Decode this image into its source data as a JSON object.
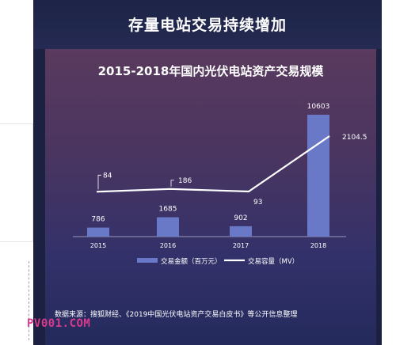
{
  "header": {
    "headline": "存量电站交易持续增加"
  },
  "chart_data": {
    "type": "bar",
    "title": "2015-2018年国内光伏电站资产交易规模",
    "categories": [
      "2015",
      "2016",
      "2017",
      "2018"
    ],
    "series": [
      {
        "name": "交易金额（百万元）",
        "type": "bar",
        "values": [
          786,
          1685,
          902,
          10603
        ],
        "labels": [
          "786",
          "1685",
          "902",
          "10603"
        ],
        "color": "#6a78c8"
      },
      {
        "name": "交易容量（MV）",
        "type": "line",
        "values": [
          84,
          186,
          93,
          2104.5
        ],
        "labels": [
          "84",
          "186",
          "93",
          "2104.5"
        ],
        "color": "#ffffff"
      }
    ],
    "xlabel": "",
    "ylabel": "",
    "grid": false,
    "legend": "bottom"
  },
  "legend": {
    "bar_label": "交易金额（百万元）",
    "line_label": "交易容量（MV）"
  },
  "footer": {
    "source": "数据来源：搜狐财经、《2019中国光伏电站资产交易白皮书》等公开信息整理",
    "watermark": "PV001.COM"
  },
  "colors": {
    "card_bg": "#1c2142",
    "bar": "#6a78c8",
    "line": "#ffffff",
    "watermark": "#d83a8c"
  }
}
